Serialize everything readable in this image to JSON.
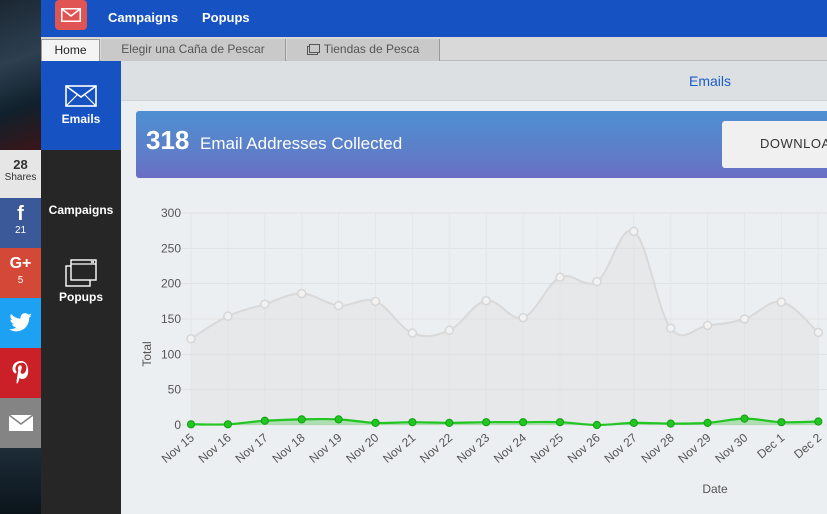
{
  "share": {
    "total": "28",
    "total_label": "Shares",
    "facebook": {
      "glyph": "f",
      "count": "21"
    },
    "googleplus": {
      "glyph": "G+",
      "count": "5"
    }
  },
  "topnav": {
    "campaigns": "Campaigns",
    "popups": "Popups"
  },
  "tabs": [
    {
      "label": "Home"
    },
    {
      "label": "Elegir una Caña de Pescar"
    },
    {
      "label": "Tiendas de Pesca"
    }
  ],
  "sidebar": {
    "emails": "Emails",
    "campaigns": "Campaigns",
    "popups": "Popups"
  },
  "subheader": {
    "title": "Emails"
  },
  "banner": {
    "count": "318",
    "label": "Email Addresses Collected",
    "download_label": "DOWNLOA"
  },
  "colors": {
    "brand_blue": "#1652c1",
    "accent_green": "#22c522",
    "gray_line": "#d9d9d9"
  },
  "chart_data": {
    "type": "area",
    "xlabel": "Date",
    "ylabel": "Total",
    "ylim": [
      0,
      300
    ],
    "yticks": [
      0,
      50,
      100,
      150,
      200,
      250,
      300
    ],
    "grid": true,
    "categories": [
      "Nov 15",
      "Nov 16",
      "Nov 17",
      "Nov 18",
      "Nov 19",
      "Nov 20",
      "Nov 21",
      "Nov 22",
      "Nov 23",
      "Nov 24",
      "Nov 25",
      "Nov 26",
      "Nov 27",
      "Nov 28",
      "Nov 29",
      "Nov 30",
      "Dec 1",
      "Dec 2"
    ],
    "series": [
      {
        "values": [
          122,
          154,
          171,
          186,
          169,
          175,
          130,
          134,
          176,
          152,
          209,
          203,
          274,
          137,
          141,
          150,
          174,
          131
        ],
        "color": "#d9d9d9"
      },
      {
        "values": [
          1,
          1,
          6,
          8,
          8,
          3,
          4,
          3,
          4,
          4,
          4,
          0,
          3,
          2,
          3,
          9,
          4,
          5
        ],
        "color": "#22c522"
      }
    ]
  }
}
